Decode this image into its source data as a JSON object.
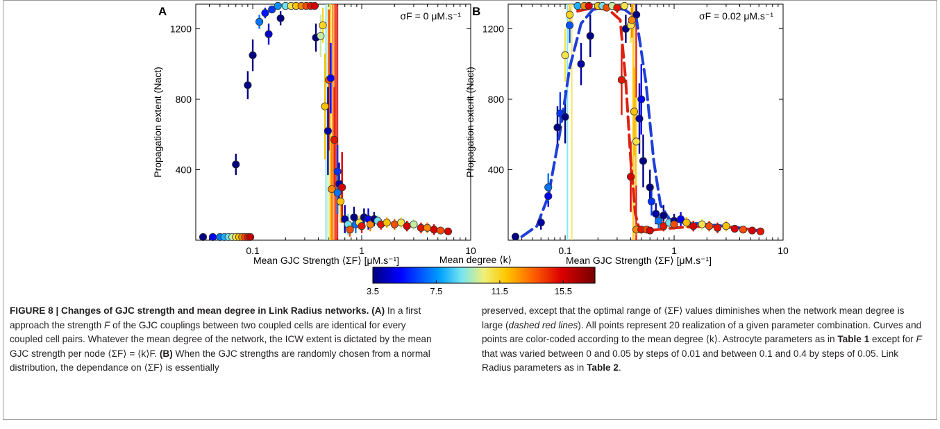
{
  "figure": {
    "caption_title": "FIGURE 8 | Changes of GJC strength and mean degree in Link Radius networks.",
    "caption_left": [
      {
        "t": "FIGURE 8 | Changes of GJC strength and mean degree in Link Radius networks.",
        "b": true
      },
      {
        "t": " "
      },
      {
        "t": "(A)",
        "b": true
      },
      {
        "t": " In a first approach the strength "
      },
      {
        "t": "F",
        "i": true
      },
      {
        "t": " of the GJC couplings between two coupled cells are identical for every coupled cell pairs. Whatever the mean degree of the network, the ICW extent is dictated by the mean GJC strength per node ⟨ΣF⟩ = ⟨k⟩F. "
      },
      {
        "t": "(B)",
        "b": true
      },
      {
        "t": " When the GJC strengths are randomly chosen from a normal distribution, the dependance on ⟨ΣF⟩ is essentially"
      }
    ],
    "caption_right": [
      {
        "t": "preserved, except that the optimal range of ⟨ΣF⟩ values diminishes when the network mean degree is large ("
      },
      {
        "t": "dashed red lines",
        "i": true
      },
      {
        "t": "). All points represent 20 realization of a given parameter combination. Curves and points are color-coded according to the mean degree ⟨k⟩. Astrocyte parameters as in "
      },
      {
        "t": "Table 1",
        "b": true
      },
      {
        "t": " except for "
      },
      {
        "t": "F",
        "i": true
      },
      {
        "t": " that was varied between 0 and 0.05 by steps of 0.01 and between 0.1 and 0.4 by steps of 0.05. Link Radius parameters as in "
      },
      {
        "t": "Table 2",
        "b": true
      },
      {
        "t": "."
      }
    ]
  },
  "chart_data": [
    {
      "type": "scatter",
      "panel_label": "A",
      "annotation": "σF = 0 μM.s⁻¹",
      "xlabel": "Mean GJC Strength ⟨ΣF⟩ [μM.s⁻¹]",
      "ylabel": "Propagation extent (Nact)",
      "xscale": "log",
      "xlim": [
        0.03,
        10
      ],
      "ylim": [
        0,
        1340
      ],
      "xticks": [
        {
          "v": 0.1,
          "label": "0.1"
        },
        {
          "v": 1,
          "label": "1"
        },
        {
          "v": 10,
          "label": "10"
        }
      ],
      "yticks": [
        {
          "v": 400,
          "label": "400"
        },
        {
          "v": 800,
          "label": "800"
        },
        {
          "v": 1200,
          "label": "1200"
        }
      ],
      "points": [
        {
          "k": 3.5,
          "x": 0.035,
          "y": 18
        },
        {
          "k": 5,
          "x": 0.043,
          "y": 18
        },
        {
          "k": 7,
          "x": 0.05,
          "y": 18
        },
        {
          "k": 8,
          "x": 0.055,
          "y": 18
        },
        {
          "k": 9,
          "x": 0.06,
          "y": 18
        },
        {
          "k": 10,
          "x": 0.065,
          "y": 18
        },
        {
          "k": 11,
          "x": 0.07,
          "y": 18
        },
        {
          "k": 12,
          "x": 0.075,
          "y": 18
        },
        {
          "k": 13,
          "x": 0.08,
          "y": 18
        },
        {
          "k": 14,
          "x": 0.085,
          "y": 18
        },
        {
          "k": 15,
          "x": 0.09,
          "y": 18
        },
        {
          "k": 16,
          "x": 0.095,
          "y": 18
        },
        {
          "k": 3.5,
          "x": 0.07,
          "y": 430,
          "e": 60
        },
        {
          "k": 3.5,
          "x": 0.09,
          "y": 880,
          "e": 80
        },
        {
          "k": 3.5,
          "x": 0.1,
          "y": 1050,
          "e": 90
        },
        {
          "k": 7,
          "x": 0.115,
          "y": 1240,
          "e": 40
        },
        {
          "k": 4.5,
          "x": 0.14,
          "y": 1170,
          "e": 60
        },
        {
          "k": 5.5,
          "x": 0.13,
          "y": 1290,
          "e": 30
        },
        {
          "k": 6,
          "x": 0.15,
          "y": 1310,
          "e": 20
        },
        {
          "k": 3.5,
          "x": 0.18,
          "y": 1260,
          "e": 40
        },
        {
          "k": 7.5,
          "x": 0.17,
          "y": 1330,
          "e": 10
        },
        {
          "k": 9,
          "x": 0.2,
          "y": 1330,
          "e": 10
        },
        {
          "k": 11,
          "x": 0.225,
          "y": 1330,
          "e": 10
        },
        {
          "k": 12,
          "x": 0.25,
          "y": 1330,
          "e": 10
        },
        {
          "k": 13,
          "x": 0.28,
          "y": 1330,
          "e": 10
        },
        {
          "k": 14,
          "x": 0.31,
          "y": 1330,
          "e": 10
        },
        {
          "k": 15,
          "x": 0.34,
          "y": 1330,
          "e": 10
        },
        {
          "k": 15.5,
          "x": 0.37,
          "y": 1330,
          "e": 10
        },
        {
          "k": 3.5,
          "x": 0.38,
          "y": 1150,
          "e": 80
        },
        {
          "k": 10,
          "x": 0.42,
          "y": 1160,
          "e": 120
        },
        {
          "k": 11.5,
          "x": 0.44,
          "y": 1220,
          "e": 100
        },
        {
          "k": 12,
          "x": 0.46,
          "y": 760,
          "e": 300
        },
        {
          "k": 14,
          "x": 0.5,
          "y": 910,
          "e": 400
        },
        {
          "k": 5,
          "x": 0.52,
          "y": 920,
          "e": 200
        },
        {
          "k": 4,
          "x": 0.49,
          "y": 620,
          "e": 250
        },
        {
          "k": 13,
          "x": 0.53,
          "y": 290,
          "e": 300
        },
        {
          "k": 15,
          "x": 0.56,
          "y": 570,
          "e": 300
        },
        {
          "k": 6,
          "x": 0.6,
          "y": 390,
          "e": 150
        },
        {
          "k": 4,
          "x": 0.62,
          "y": 320,
          "e": 120
        },
        {
          "k": 7,
          "x": 0.6,
          "y": 270,
          "e": 120
        },
        {
          "k": 12,
          "x": 0.64,
          "y": 220,
          "e": 120
        },
        {
          "k": 15.5,
          "x": 0.66,
          "y": 300,
          "e": 200
        },
        {
          "k": 4,
          "x": 0.7,
          "y": 120,
          "e": 80
        },
        {
          "k": 9,
          "x": 0.75,
          "y": 90,
          "e": 60
        },
        {
          "k": 14,
          "x": 0.78,
          "y": 60,
          "e": 40
        },
        {
          "k": 3.5,
          "x": 0.85,
          "y": 130,
          "e": 60
        },
        {
          "k": 7,
          "x": 0.88,
          "y": 90,
          "e": 50
        },
        {
          "k": 11,
          "x": 0.95,
          "y": 100,
          "e": 40
        },
        {
          "k": 3.5,
          "x": 1.05,
          "y": 130,
          "e": 50
        },
        {
          "k": 15,
          "x": 1.0,
          "y": 80,
          "e": 40
        },
        {
          "k": 5,
          "x": 1.15,
          "y": 120,
          "e": 60
        },
        {
          "k": 13,
          "x": 1.2,
          "y": 90,
          "e": 40
        },
        {
          "k": 3.5,
          "x": 1.3,
          "y": 120,
          "e": 40
        },
        {
          "k": 9,
          "x": 1.4,
          "y": 110,
          "e": 30
        },
        {
          "k": 15,
          "x": 1.5,
          "y": 90,
          "e": 30
        },
        {
          "k": 12,
          "x": 1.7,
          "y": 100,
          "e": 30
        },
        {
          "k": 14,
          "x": 2.0,
          "y": 90,
          "e": 30
        },
        {
          "k": 11,
          "x": 2.3,
          "y": 100,
          "e": 30
        },
        {
          "k": 15.5,
          "x": 2.6,
          "y": 80,
          "e": 30
        },
        {
          "k": 10,
          "x": 3.0,
          "y": 90,
          "e": 30
        },
        {
          "k": 15,
          "x": 3.5,
          "y": 70,
          "e": 30
        },
        {
          "k": 13,
          "x": 4.0,
          "y": 70,
          "e": 30
        },
        {
          "k": 15.5,
          "x": 4.6,
          "y": 60,
          "e": 30
        },
        {
          "k": 14,
          "x": 5.3,
          "y": 55,
          "e": 20
        },
        {
          "k": 15.5,
          "x": 6.2,
          "y": 50,
          "e": 20
        }
      ],
      "vertical_bands": [
        {
          "k": 9,
          "x": 0.47
        },
        {
          "k": 10,
          "x": 0.49
        },
        {
          "k": 11,
          "x": 0.51
        },
        {
          "k": 12,
          "x": 0.52
        },
        {
          "k": 13,
          "x": 0.54
        },
        {
          "k": 14,
          "x": 0.56
        },
        {
          "k": 15,
          "x": 0.58
        },
        {
          "k": 15.5,
          "x": 0.6
        }
      ]
    },
    {
      "type": "scatter",
      "panel_label": "B",
      "annotation": "σF = 0.02 μM.s⁻¹",
      "xlabel": "Mean GJC Strength ⟨ΣF⟩ [μM.s⁻¹]",
      "ylabel": "Propagation extent (Nact)",
      "xscale": "log",
      "xlim": [
        0.03,
        10
      ],
      "ylim": [
        0,
        1340
      ],
      "xticks": [
        {
          "v": 0.1,
          "label": "0.1"
        },
        {
          "v": 1,
          "label": "1"
        },
        {
          "v": 10,
          "label": "10"
        }
      ],
      "yticks": [
        {
          "v": 400,
          "label": "400"
        },
        {
          "v": 800,
          "label": "800"
        },
        {
          "v": 1200,
          "label": "1200"
        }
      ],
      "points": [
        {
          "k": 3.5,
          "x": 0.035,
          "y": 20
        },
        {
          "k": 4,
          "x": 0.06,
          "y": 100,
          "e": 40
        },
        {
          "k": 5,
          "x": 0.07,
          "y": 250,
          "e": 60
        },
        {
          "k": 7,
          "x": 0.07,
          "y": 300,
          "e": 80
        },
        {
          "k": 3.5,
          "x": 0.085,
          "y": 640,
          "e": 120
        },
        {
          "k": 6,
          "x": 0.09,
          "y": 720,
          "e": 120
        },
        {
          "k": 3.5,
          "x": 0.1,
          "y": 700,
          "e": 150
        },
        {
          "k": 11,
          "x": 0.1,
          "y": 1050,
          "e": 150
        },
        {
          "k": 6.5,
          "x": 0.11,
          "y": 1220,
          "e": 100
        },
        {
          "k": 11.5,
          "x": 0.11,
          "y": 1280,
          "e": 80
        },
        {
          "k": 4,
          "x": 0.14,
          "y": 1000,
          "e": 120
        },
        {
          "k": 3.5,
          "x": 0.17,
          "y": 1160,
          "e": 120
        },
        {
          "k": 8,
          "x": 0.13,
          "y": 1330,
          "e": 30
        },
        {
          "k": 13,
          "x": 0.15,
          "y": 1330,
          "e": 20
        },
        {
          "k": 15.5,
          "x": 0.165,
          "y": 1330,
          "e": 20
        },
        {
          "k": 12,
          "x": 0.2,
          "y": 1330,
          "e": 20
        },
        {
          "k": 9,
          "x": 0.22,
          "y": 1330,
          "e": 20
        },
        {
          "k": 14,
          "x": 0.24,
          "y": 1320,
          "e": 20
        },
        {
          "k": 10,
          "x": 0.27,
          "y": 1330,
          "e": 20
        },
        {
          "k": 15,
          "x": 0.3,
          "y": 1320,
          "e": 30
        },
        {
          "k": 11,
          "x": 0.35,
          "y": 1330,
          "e": 20
        },
        {
          "k": 3.5,
          "x": 0.36,
          "y": 1200,
          "e": 80
        },
        {
          "k": 15,
          "x": 0.33,
          "y": 910,
          "e": 200
        },
        {
          "k": 11,
          "x": 0.4,
          "y": 1220,
          "e": 100
        },
        {
          "k": 13,
          "x": 0.41,
          "y": 1250,
          "e": 100
        },
        {
          "k": 3.5,
          "x": 0.45,
          "y": 1280,
          "e": 60
        },
        {
          "k": 12,
          "x": 0.43,
          "y": 730,
          "e": 250
        },
        {
          "k": 11,
          "x": 0.45,
          "y": 560,
          "e": 250
        },
        {
          "k": 15.5,
          "x": 0.4,
          "y": 360,
          "e": 200
        },
        {
          "k": 5,
          "x": 0.5,
          "y": 800,
          "e": 200
        },
        {
          "k": 4,
          "x": 0.48,
          "y": 690,
          "e": 200
        },
        {
          "k": 3.5,
          "x": 0.52,
          "y": 450,
          "e": 150
        },
        {
          "k": 13,
          "x": 0.45,
          "y": 60,
          "e": 30
        },
        {
          "k": 15,
          "x": 0.5,
          "y": 60,
          "e": 20
        },
        {
          "k": 14,
          "x": 0.56,
          "y": 60,
          "e": 20
        },
        {
          "k": 15.5,
          "x": 0.6,
          "y": 55,
          "e": 20
        },
        {
          "k": 3.5,
          "x": 0.6,
          "y": 300,
          "e": 100
        },
        {
          "k": 6,
          "x": 0.62,
          "y": 220,
          "e": 80
        },
        {
          "k": 4,
          "x": 0.68,
          "y": 150,
          "e": 60
        },
        {
          "k": 7,
          "x": 0.72,
          "y": 110,
          "e": 50
        },
        {
          "k": 3.5,
          "x": 0.8,
          "y": 140,
          "e": 60
        },
        {
          "k": 15,
          "x": 0.8,
          "y": 80,
          "e": 30
        },
        {
          "k": 9,
          "x": 0.9,
          "y": 100,
          "e": 40
        },
        {
          "k": 3.5,
          "x": 1.0,
          "y": 110,
          "e": 40
        },
        {
          "k": 14,
          "x": 1.0,
          "y": 90,
          "e": 30
        },
        {
          "k": 5,
          "x": 1.15,
          "y": 120,
          "e": 40
        },
        {
          "k": 12,
          "x": 1.3,
          "y": 100,
          "e": 30
        },
        {
          "k": 15.5,
          "x": 1.5,
          "y": 80,
          "e": 30
        },
        {
          "k": 11,
          "x": 1.8,
          "y": 90,
          "e": 30
        },
        {
          "k": 14,
          "x": 2.1,
          "y": 80,
          "e": 30
        },
        {
          "k": 15,
          "x": 2.5,
          "y": 70,
          "e": 30
        },
        {
          "k": 12,
          "x": 3.0,
          "y": 80,
          "e": 30
        },
        {
          "k": 15.5,
          "x": 3.6,
          "y": 65,
          "e": 20
        },
        {
          "k": 14,
          "x": 4.3,
          "y": 60,
          "e": 20
        },
        {
          "k": 15.5,
          "x": 5.2,
          "y": 55,
          "e": 20
        },
        {
          "k": 15,
          "x": 6.2,
          "y": 50,
          "e": 20
        }
      ],
      "vertical_bands": [
        {
          "k": 9,
          "x": 0.105
        },
        {
          "k": 11,
          "x": 0.115
        },
        {
          "k": 12,
          "x": 0.42
        },
        {
          "k": 13,
          "x": 0.44
        },
        {
          "k": 15.5,
          "x": 0.45
        }
      ],
      "curves": [
        {
          "k": 3.5,
          "color": "#1f3fd8",
          "points": [
            [
              0.04,
              20
            ],
            [
              0.055,
              80
            ],
            [
              0.07,
              250
            ],
            [
              0.09,
              620
            ],
            [
              0.11,
              980
            ],
            [
              0.14,
              1230
            ],
            [
              0.18,
              1310
            ],
            [
              0.25,
              1320
            ],
            [
              0.35,
              1310
            ],
            [
              0.45,
              1260
            ],
            [
              0.55,
              900
            ],
            [
              0.65,
              450
            ],
            [
              0.75,
              200
            ],
            [
              0.9,
              120
            ],
            [
              1.2,
              100
            ],
            [
              2,
              90
            ],
            [
              4,
              70
            ],
            [
              6.5,
              50
            ]
          ]
        },
        {
          "k": 15.5,
          "color": "#dd2211",
          "points": [
            [
              0.13,
              1300
            ],
            [
              0.18,
              1320
            ],
            [
              0.25,
              1310
            ],
            [
              0.32,
              1250
            ],
            [
              0.36,
              900
            ],
            [
              0.4,
              450
            ],
            [
              0.44,
              150
            ],
            [
              0.48,
              60
            ],
            [
              0.6,
              55
            ],
            [
              1,
              70
            ],
            [
              2,
              80
            ],
            [
              4,
              70
            ],
            [
              6.5,
              50
            ]
          ]
        }
      ]
    }
  ],
  "colorbar": {
    "title": "Mean degree ⟨k⟩",
    "min": 3.5,
    "max": 17.5,
    "ticks": [
      {
        "v": 3.5,
        "label": "3.5"
      },
      {
        "v": 7.5,
        "label": "7.5"
      },
      {
        "v": 11.5,
        "label": "11.5"
      },
      {
        "v": 15.5,
        "label": "15.5"
      }
    ]
  }
}
